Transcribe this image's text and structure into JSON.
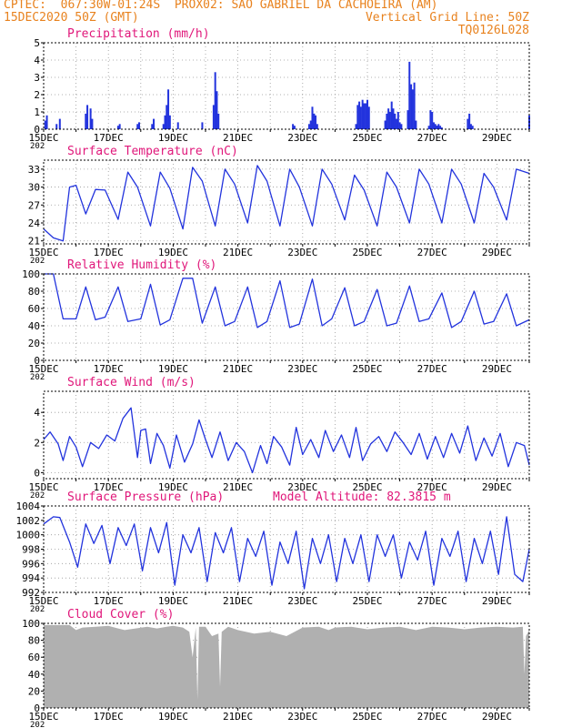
{
  "header": {
    "line1": "CPTEC:  067:30W-01:24S  PROX02: SAO GABRIEL DA CACHOEIRA (AM)",
    "line2_left": "15DEC2020 50Z (GMT)",
    "line2_right": "Vertical Grid Line: 50Z",
    "line3_right": "TQ0126L028"
  },
  "colors": {
    "series": "#2233dd",
    "title": "#e0177a",
    "cloud": "#b0b0b0",
    "header": "#e8821e"
  },
  "x_axis": {
    "tick_labels": [
      "15DEC",
      "17DEC",
      "19DEC",
      "21DEC",
      "23DEC",
      "25DEC",
      "27DEC",
      "29DEC"
    ],
    "partial_label": "202",
    "range_days": [
      0,
      15
    ]
  },
  "chart_data": [
    {
      "type": "bar",
      "title": "Precipitation (mm/h)",
      "ylim": [
        0,
        5
      ],
      "yticks": [
        "0",
        "1",
        "2",
        "3",
        "4",
        "5"
      ],
      "x": [
        0.05,
        0.1,
        0.4,
        0.5,
        1.3,
        1.35,
        1.45,
        1.5,
        2.3,
        2.35,
        2.9,
        2.95,
        3.35,
        3.4,
        3.7,
        3.75,
        3.8,
        3.85,
        3.9,
        4.15,
        4.9,
        5.25,
        5.3,
        5.35,
        5.4,
        7.7,
        7.75,
        8.2,
        8.25,
        8.3,
        8.35,
        8.35,
        8.4,
        8.45,
        9.65,
        9.7,
        9.75,
        9.8,
        9.85,
        9.9,
        9.95,
        10.0,
        10.05,
        10.55,
        10.6,
        10.65,
        10.7,
        10.75,
        10.8,
        10.85,
        10.9,
        10.95,
        11.0,
        11.05,
        11.25,
        11.3,
        11.35,
        11.4,
        11.45,
        11.5,
        11.9,
        11.95,
        12.0,
        12.05,
        12.1,
        12.15,
        12.15,
        12.2,
        12.25,
        12.3,
        13.1,
        13.15,
        13.2,
        13.25,
        15.0
      ],
      "values": [
        0.5,
        0.8,
        0.3,
        0.6,
        0.9,
        1.4,
        1.2,
        0.6,
        0.2,
        0.3,
        0.3,
        0.4,
        0.3,
        0.6,
        0.3,
        0.8,
        1.4,
        2.3,
        0.8,
        0.4,
        0.4,
        1.4,
        3.3,
        2.2,
        0.9,
        0.3,
        0.2,
        0.3,
        0.5,
        1.3,
        0.9,
        0.9,
        0.8,
        0.3,
        0.3,
        1.4,
        1.6,
        1.3,
        1.7,
        1.5,
        1.5,
        1.7,
        1.3,
        0.5,
        0.9,
        1.2,
        1.0,
        1.6,
        1.2,
        0.9,
        0.6,
        1.0,
        0.4,
        0.3,
        1.1,
        3.9,
        2.6,
        2.3,
        2.7,
        0.5,
        0.2,
        1.1,
        1.0,
        0.4,
        0.3,
        0.2,
        0.2,
        0.3,
        0.2,
        0.1,
        0.6,
        0.9,
        0.3,
        0.2,
        0.8
      ]
    },
    {
      "type": "line",
      "title": "Surface Temperature (nC)",
      "ylim": [
        20.5,
        34.5
      ],
      "yticks": [
        "21",
        "24",
        "27",
        "30",
        "33"
      ],
      "x": [
        0,
        0.3,
        0.6,
        0.8,
        1.0,
        1.3,
        1.6,
        1.9,
        2.3,
        2.6,
        2.9,
        3.3,
        3.6,
        3.9,
        4.3,
        4.6,
        4.9,
        5.3,
        5.6,
        5.9,
        6.3,
        6.6,
        6.9,
        7.3,
        7.6,
        7.9,
        8.3,
        8.6,
        8.9,
        9.3,
        9.6,
        9.9,
        10.3,
        10.6,
        10.9,
        11.3,
        11.6,
        11.9,
        12.3,
        12.6,
        12.9,
        13.3,
        13.6,
        13.9,
        14.3,
        14.6,
        15.0
      ],
      "values": [
        23,
        21.5,
        21,
        30,
        30.3,
        25.5,
        29.6,
        29.5,
        24.6,
        32.5,
        30,
        23.5,
        32.5,
        29.8,
        23,
        33.3,
        31,
        23.5,
        33,
        30.5,
        24,
        33.6,
        31,
        23.5,
        33,
        30,
        23.5,
        33,
        30.5,
        24.5,
        32,
        29.5,
        23.5,
        32.5,
        30,
        24,
        33,
        30.5,
        24,
        33,
        30.5,
        24,
        32.3,
        30,
        24.5,
        33,
        32.3
      ]
    },
    {
      "type": "line",
      "title": "Relative Humidity (%)",
      "ylim": [
        0,
        100
      ],
      "yticks": [
        "0",
        "20",
        "40",
        "60",
        "80",
        "100"
      ],
      "x": [
        0,
        0.3,
        0.6,
        1.0,
        1.3,
        1.6,
        1.9,
        2.3,
        2.6,
        3.0,
        3.3,
        3.6,
        3.9,
        4.3,
        4.6,
        4.9,
        5.3,
        5.6,
        5.9,
        6.3,
        6.6,
        6.9,
        7.3,
        7.6,
        7.9,
        8.3,
        8.6,
        8.9,
        9.3,
        9.6,
        9.9,
        10.3,
        10.6,
        10.9,
        11.3,
        11.6,
        11.9,
        12.3,
        12.6,
        12.9,
        13.3,
        13.6,
        13.9,
        14.3,
        14.6,
        15.0
      ],
      "values": [
        100,
        100,
        48,
        48,
        85,
        47,
        50,
        85,
        45,
        48,
        88,
        41,
        47,
        95,
        95,
        43,
        85,
        40,
        45,
        85,
        38,
        45,
        92,
        38,
        42,
        94,
        40,
        48,
        84,
        40,
        45,
        82,
        40,
        43,
        86,
        45,
        48,
        78,
        38,
        45,
        80,
        42,
        45,
        77,
        40,
        47
      ]
    },
    {
      "type": "line",
      "title": "Surface Wind (m/s)",
      "ylim": [
        -0.4,
        5.4
      ],
      "yticks": [
        "0",
        "2",
        "4"
      ],
      "x": [
        0,
        0.2,
        0.45,
        0.6,
        0.8,
        1.0,
        1.2,
        1.45,
        1.7,
        1.95,
        2.2,
        2.45,
        2.7,
        2.9,
        3.0,
        3.15,
        3.3,
        3.5,
        3.7,
        3.9,
        4.1,
        4.35,
        4.6,
        4.8,
        5.0,
        5.2,
        5.45,
        5.7,
        5.95,
        6.2,
        6.45,
        6.7,
        6.9,
        7.1,
        7.35,
        7.6,
        7.8,
        8.0,
        8.25,
        8.5,
        8.7,
        8.95,
        9.2,
        9.45,
        9.65,
        9.85,
        10.1,
        10.35,
        10.6,
        10.85,
        11.1,
        11.35,
        11.6,
        11.85,
        12.1,
        12.35,
        12.6,
        12.85,
        13.1,
        13.35,
        13.6,
        13.85,
        14.1,
        14.35,
        14.6,
        14.85,
        15.0
      ],
      "values": [
        2.2,
        2.7,
        1.9,
        0.8,
        2.4,
        1.7,
        0.4,
        2.0,
        1.6,
        2.5,
        2.1,
        3.6,
        4.3,
        1.0,
        2.8,
        2.9,
        0.6,
        2.6,
        1.8,
        0.3,
        2.5,
        0.7,
        1.9,
        3.5,
        2.2,
        1.0,
        2.7,
        0.8,
        2.0,
        1.4,
        0.0,
        1.8,
        0.6,
        2.4,
        1.7,
        0.5,
        3.0,
        1.2,
        2.2,
        1.0,
        2.8,
        1.4,
        2.5,
        1.0,
        3.0,
        0.8,
        1.9,
        2.4,
        1.4,
        2.7,
        2.0,
        1.2,
        2.6,
        0.9,
        2.4,
        1.0,
        2.6,
        1.3,
        3.1,
        0.8,
        2.3,
        1.1,
        2.6,
        0.4,
        2.0,
        1.8,
        0.5
      ]
    },
    {
      "type": "line",
      "title": "Surface Pressure (hPa)",
      "annotation": "Model Altitude: 82.3815 m",
      "ylim": [
        992,
        1004
      ],
      "yticks": [
        "992",
        "994",
        "996",
        "998",
        "1000",
        "1002",
        "1004"
      ],
      "x": [
        0,
        0.3,
        0.5,
        0.8,
        1.05,
        1.3,
        1.55,
        1.8,
        2.05,
        2.3,
        2.55,
        2.8,
        3.05,
        3.3,
        3.55,
        3.8,
        4.05,
        4.3,
        4.55,
        4.8,
        5.05,
        5.3,
        5.55,
        5.8,
        6.05,
        6.3,
        6.55,
        6.8,
        7.05,
        7.3,
        7.55,
        7.8,
        8.05,
        8.3,
        8.55,
        8.8,
        9.05,
        9.3,
        9.55,
        9.8,
        10.05,
        10.3,
        10.55,
        10.8,
        11.05,
        11.3,
        11.55,
        11.8,
        12.05,
        12.3,
        12.55,
        12.8,
        13.05,
        13.3,
        13.55,
        13.8,
        14.05,
        14.3,
        14.55,
        14.8,
        15.0
      ],
      "values": [
        1001.5,
        1002.5,
        1002.4,
        999,
        995.5,
        1001.5,
        998.8,
        1001.3,
        996,
        1001,
        998.5,
        1001.5,
        995,
        1001,
        997.5,
        1001.7,
        993,
        1000,
        997.5,
        1001,
        993.5,
        1000.3,
        997.5,
        1001,
        993.5,
        999.5,
        997,
        1000.5,
        993,
        999,
        996,
        1000.5,
        992.5,
        999.5,
        996,
        1000,
        993.5,
        999.5,
        996,
        1000,
        993.5,
        1000,
        997,
        1000,
        994,
        999,
        996.5,
        1000.5,
        993,
        999.5,
        997,
        1000.5,
        993.5,
        999.5,
        996,
        1000.5,
        994.5,
        1002.5,
        994.5,
        993.5,
        998
      ]
    },
    {
      "type": "area",
      "title": "Cloud Cover (%)",
      "ylim": [
        0,
        100
      ],
      "yticks": [
        "0",
        "20",
        "40",
        "60",
        "80",
        "100"
      ],
      "x": [
        0,
        0.8,
        1.0,
        1.2,
        1.6,
        2.0,
        2.5,
        3.2,
        3.5,
        3.8,
        4.0,
        4.3,
        4.5,
        4.6,
        4.7,
        4.75,
        4.8,
        5.0,
        5.2,
        5.4,
        5.45,
        5.5,
        5.7,
        6.0,
        6.5,
        7.0,
        7.5,
        8.0,
        8.5,
        8.8,
        9.0,
        9.5,
        10.0,
        10.5,
        11.0,
        11.5,
        12.0,
        12.5,
        13.0,
        13.5,
        14.0,
        14.5,
        14.8,
        14.85,
        14.9,
        15.0
      ],
      "values": [
        98,
        98,
        92,
        95,
        96,
        97,
        92,
        96,
        94,
        96,
        97,
        95,
        90,
        60,
        95,
        10,
        96,
        96,
        85,
        88,
        25,
        90,
        96,
        92,
        88,
        90,
        85,
        95,
        96,
        92,
        95,
        96,
        93,
        95,
        96,
        92,
        96,
        95,
        93,
        95,
        96,
        95,
        96,
        40,
        85,
        92
      ]
    }
  ]
}
